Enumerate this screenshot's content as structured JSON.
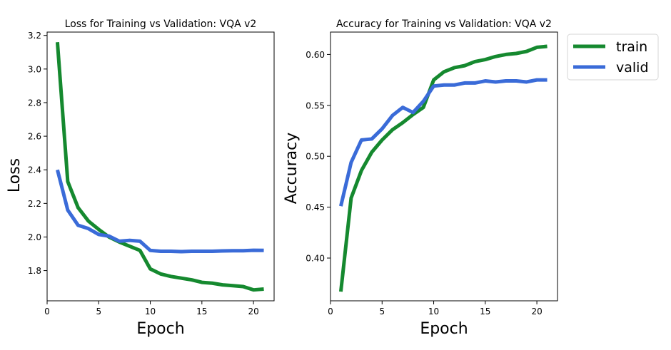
{
  "chart_data": [
    {
      "type": "line",
      "title": "Loss for Training vs Validation: VQA v2",
      "xlabel": "Epoch",
      "ylabel": "Loss",
      "xlim": [
        0,
        22
      ],
      "ylim": [
        1.62,
        3.22
      ],
      "xticks": [
        0,
        5,
        10,
        15,
        20
      ],
      "yticks": [
        1.8,
        2.0,
        2.2,
        2.4,
        2.6,
        2.8,
        3.0,
        3.2
      ],
      "ytick_labels": [
        "1.8",
        "2.0",
        "2.2",
        "2.4",
        "2.6",
        "2.8",
        "3.0",
        "3.2"
      ],
      "x": [
        1,
        2,
        3,
        4,
        5,
        6,
        7,
        8,
        9,
        10,
        11,
        12,
        13,
        14,
        15,
        16,
        17,
        18,
        19,
        20,
        21
      ],
      "series": [
        {
          "name": "train",
          "color": "#15892f",
          "values": [
            3.16,
            2.33,
            2.175,
            2.095,
            2.045,
            2.0,
            1.97,
            1.945,
            1.92,
            1.81,
            1.78,
            1.765,
            1.755,
            1.745,
            1.73,
            1.725,
            1.715,
            1.71,
            1.705,
            1.685,
            1.69
          ]
        },
        {
          "name": "valid",
          "color": "#3a6bd8",
          "values": [
            2.4,
            2.16,
            2.07,
            2.05,
            2.015,
            2.005,
            1.975,
            1.98,
            1.975,
            1.92,
            1.915,
            1.915,
            1.913,
            1.915,
            1.915,
            1.915,
            1.917,
            1.918,
            1.918,
            1.921,
            1.92
          ]
        }
      ]
    },
    {
      "type": "line",
      "title": "Accuracy for Training vs Validation: VQA v2",
      "xlabel": "Epoch",
      "ylabel": "Accuracy",
      "xlim": [
        0,
        22
      ],
      "ylim": [
        0.358,
        0.622
      ],
      "xticks": [
        0,
        5,
        10,
        15,
        20
      ],
      "yticks": [
        0.4,
        0.45,
        0.5,
        0.55,
        0.6
      ],
      "ytick_labels": [
        "0.40",
        "0.45",
        "0.50",
        "0.55",
        "0.60"
      ],
      "x": [
        1,
        2,
        3,
        4,
        5,
        6,
        7,
        8,
        9,
        10,
        11,
        12,
        13,
        14,
        15,
        16,
        17,
        18,
        19,
        20,
        21
      ],
      "series": [
        {
          "name": "train",
          "color": "#15892f",
          "values": [
            0.367,
            0.459,
            0.486,
            0.504,
            0.516,
            0.526,
            0.533,
            0.541,
            0.548,
            0.575,
            0.583,
            0.587,
            0.589,
            0.593,
            0.595,
            0.598,
            0.6,
            0.601,
            0.603,
            0.607,
            0.608
          ]
        },
        {
          "name": "valid",
          "color": "#3a6bd8",
          "values": [
            0.451,
            0.494,
            0.516,
            0.517,
            0.527,
            0.54,
            0.548,
            0.543,
            0.554,
            0.569,
            0.57,
            0.57,
            0.572,
            0.572,
            0.574,
            0.573,
            0.574,
            0.574,
            0.573,
            0.575,
            0.575
          ]
        }
      ]
    }
  ],
  "legend": {
    "placement": "outside-right-top",
    "entries": [
      {
        "label": "train",
        "color": "#15892f"
      },
      {
        "label": "valid",
        "color": "#3a6bd8"
      }
    ]
  }
}
